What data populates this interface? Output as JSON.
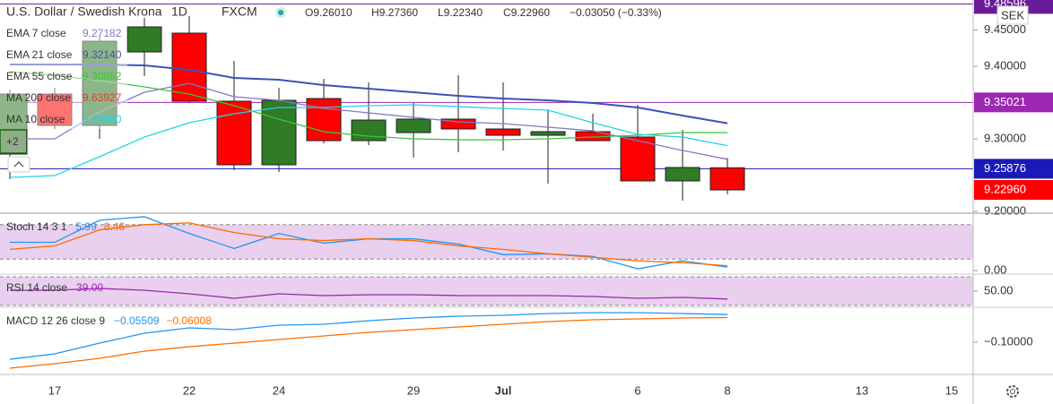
{
  "header": {
    "symbol": "U.S. Dollar / Swedish Krona",
    "interval": "1D",
    "exchange": "FXCM",
    "ohlc": [
      "O9.26010",
      "H9.27360",
      "L9.22340",
      "C9.22960",
      "−0.03050 (−0.33%)"
    ],
    "currency": "SEK",
    "more": "+2"
  },
  "chart_data": [
    {
      "type": "candlestick",
      "categories": [
        null,
        "17",
        null,
        null,
        "22",
        null,
        "24",
        null,
        null,
        "29",
        null,
        "Jul",
        null,
        null,
        "6",
        null,
        "8",
        null,
        null,
        "13",
        null,
        "15"
      ],
      "open": [
        9.279,
        9.3617,
        9.3185,
        9.4198,
        9.4457,
        9.3519,
        9.2642,
        9.3556,
        9.2975,
        9.3086,
        9.3272,
        9.3136,
        9.3049,
        9.3099,
        9.3025,
        9.242,
        9.2601,
        null,
        null,
        null,
        null,
        null
      ],
      "high": [
        9.3679,
        9.3704,
        9.442,
        9.4667,
        9.4691,
        9.4074,
        9.3704,
        9.3827,
        9.3778,
        9.3494,
        9.3877,
        9.3778,
        9.3407,
        9.3346,
        9.3469,
        9.3123,
        9.2736,
        null,
        null,
        null,
        null,
        null
      ],
      "low": [
        9.2444,
        9.3136,
        9.3,
        9.3864,
        9.3494,
        9.2568,
        9.2543,
        9.2938,
        9.2914,
        9.2741,
        9.2815,
        9.284,
        9.2383,
        9.2975,
        9.242,
        9.2148,
        9.2234,
        null,
        null,
        null,
        null,
        null
      ],
      "close": [
        9.3617,
        9.3185,
        9.4346,
        9.4543,
        9.3519,
        9.2642,
        9.3531,
        9.2975,
        9.3259,
        9.3272,
        9.3136,
        9.3049,
        9.3099,
        9.2975,
        9.242,
        9.2605,
        9.2296,
        null,
        null,
        null,
        null,
        null
      ],
      "up_color": "#2f7b26",
      "down_color": "#ff0000",
      "ylim": [
        9.1975,
        9.4914
      ],
      "yticks": [
        {
          "value": 9.2,
          "label": "9.20000"
        },
        {
          "value": 9.3,
          "label": "9.30000"
        },
        {
          "value": 9.4,
          "label": "9.40000"
        },
        {
          "value": 9.45,
          "label": "9.45000"
        }
      ],
      "series": [
        {
          "name": "EMA 7 close",
          "legend_value": "9.27182",
          "color": "#8577c4",
          "values": [
            9.3,
            9.3,
            9.337,
            9.3642,
            9.3765,
            9.358,
            9.3531,
            9.342,
            9.3358,
            9.3296,
            9.3235,
            9.321,
            9.316,
            9.3111,
            9.2975,
            9.284,
            9.27182,
            null,
            null,
            null,
            null,
            null
          ]
        },
        {
          "name": "EMA 21 close",
          "legend_value": "9.32140",
          "color": "#3f51b5",
          "values": [
            9.4025,
            9.4025,
            9.4025,
            9.4012,
            9.3951,
            9.384,
            9.3815,
            9.3741,
            9.3691,
            9.3642,
            9.3593,
            9.3556,
            9.3531,
            9.3494,
            9.3432,
            9.3321,
            9.3214,
            null,
            null,
            null,
            null,
            null
          ]
        },
        {
          "name": "EMA 55 close",
          "legend_value": "9.30862",
          "color": "#3cc43c",
          "values": [
            9.3926,
            9.3877,
            9.3802,
            9.3716,
            9.3617,
            9.3457,
            9.3272,
            9.3099,
            9.3037,
            9.3,
            9.2988,
            9.2988,
            9.3,
            9.3025,
            9.3049,
            9.3086,
            9.30862,
            null,
            null,
            null,
            null,
            null
          ]
        },
        {
          "name": "MA 200 close",
          "legend_value": "9.63927",
          "color": "#e53935",
          "values": [
            null,
            null,
            null,
            null,
            null,
            null,
            null,
            null,
            null,
            null,
            null,
            null,
            null,
            null,
            null,
            null,
            null,
            null,
            null,
            null,
            null,
            null
          ]
        },
        {
          "name": "MA 10 close",
          "legend_value": "9.29060",
          "color": "#22d3ee",
          "values": [
            9.2469,
            9.2494,
            9.2753,
            9.3025,
            9.3222,
            9.3346,
            9.3432,
            9.3432,
            9.3457,
            9.3469,
            9.3444,
            9.342,
            9.3395,
            9.3222,
            9.3062,
            9.3025,
            9.2906,
            null,
            null,
            null,
            null,
            null
          ]
        }
      ],
      "price_lines": [
        {
          "value": 9.48596,
          "color": "#6a1b9a"
        },
        {
          "value": 9.35021,
          "color": "#9c27b0"
        },
        {
          "value": 9.25876,
          "color": "#1a1ab8"
        }
      ],
      "last_price": {
        "value": 9.2296,
        "label": "9.22960",
        "color": "#ff0000"
      }
    },
    {
      "type": "line",
      "title": "Stoch 14 3 1",
      "ylim": [
        -6.2,
        100
      ],
      "yticks": [
        {
          "value": 0,
          "label": "0.00"
        }
      ],
      "bands": [
        20,
        80
      ],
      "series": [
        {
          "legend_value": "5.99",
          "color": "#2196f3",
          "values": [
            49.2,
            49.2,
            87.7,
            93.8,
            64.6,
            38.5,
            64.6,
            47.7,
            55.4,
            55.4,
            46.2,
            27.7,
            29.2,
            24.6,
            3.1,
            16.9,
            5.99,
            null,
            null,
            null,
            null,
            null
          ]
        },
        {
          "legend_value": "8.46",
          "color": "#ff6d00",
          "values": [
            36.9,
            43.1,
            70.8,
            80.0,
            83.1,
            66.2,
            55.4,
            52.3,
            55.4,
            52.3,
            43.1,
            36.9,
            29.2,
            23.1,
            16.9,
            13.8,
            8.46,
            null,
            null,
            null,
            null,
            null
          ]
        }
      ]
    },
    {
      "type": "line",
      "title": "RSI 14 close",
      "ylim": [
        27.5,
        73.75
      ],
      "yticks": [
        {
          "value": 50,
          "label": "50.00"
        }
      ],
      "bands": [
        30,
        70
      ],
      "series": [
        {
          "legend_value": "39.00",
          "color": "#9c27b0",
          "values": [
            51.25,
            51.25,
            53.75,
            51.25,
            46.25,
            40.0,
            46.25,
            43.75,
            45.0,
            45.0,
            43.75,
            43.75,
            43.75,
            42.5,
            40.0,
            41.25,
            39.0,
            null,
            null,
            null,
            null,
            null
          ]
        }
      ]
    },
    {
      "type": "line",
      "title": "MACD 12 26 close 9",
      "ylim": [
        -0.1522,
        -0.0434
      ],
      "yticks": [
        {
          "value": -0.1,
          "label": "−0.10000"
        }
      ],
      "series": [
        {
          "legend_value": "−0.05509",
          "color": "#2196f3",
          "values": [
            -0.1276,
            -0.1189,
            -0.1015,
            -0.0855,
            -0.0768,
            -0.0797,
            -0.0724,
            -0.071,
            -0.0652,
            -0.0608,
            -0.0579,
            -0.0565,
            -0.0536,
            -0.0521,
            -0.0521,
            -0.0536,
            -0.05509,
            null,
            null,
            null,
            null,
            null
          ]
        },
        {
          "legend_value": "−0.06008",
          "color": "#ff6d00",
          "values": [
            -0.1421,
            -0.1348,
            -0.1261,
            -0.1145,
            -0.1073,
            -0.1015,
            -0.0956,
            -0.0898,
            -0.084,
            -0.0797,
            -0.0753,
            -0.071,
            -0.0666,
            -0.0637,
            -0.0623,
            -0.0608,
            -0.06008,
            null,
            null,
            null,
            null,
            null
          ]
        }
      ]
    }
  ]
}
